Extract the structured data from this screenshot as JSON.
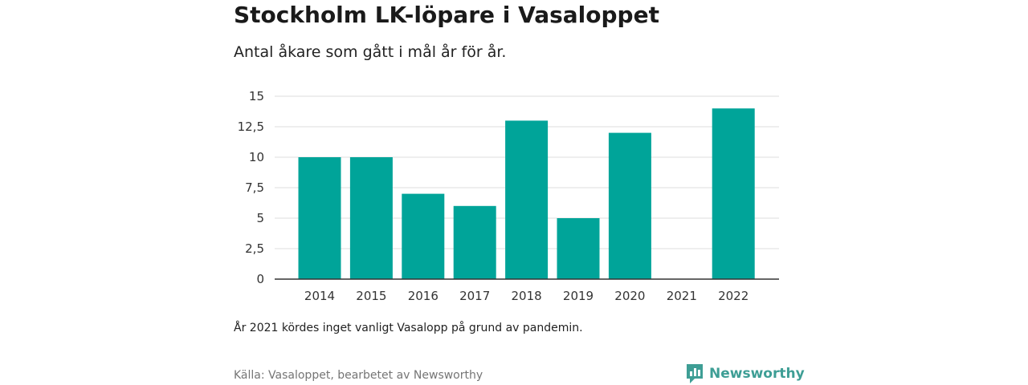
{
  "header": {
    "title": "Stockholm LK-löpare i Vasaloppet",
    "subtitle": "Antal åkare som gått i mål år för år."
  },
  "footer": {
    "note": "År 2021 kördes inget vanligt Vasalopp på grund av pandemin.",
    "source": "Källa: Vasaloppet, bearbetet av Newsworthy",
    "brand_name": "Newsworthy",
    "brand_icon": "newsworthy-logo-icon"
  },
  "colors": {
    "bar": "#00a499",
    "brand": "#3e9e95",
    "grid": "#dddddd",
    "axis": "#333333"
  },
  "chart_data": {
    "type": "bar",
    "title": "Stockholm LK-löpare i Vasaloppet",
    "subtitle": "Antal åkare som gått i mål år för år.",
    "xlabel": "",
    "ylabel": "",
    "categories": [
      "2014",
      "2015",
      "2016",
      "2017",
      "2018",
      "2019",
      "2020",
      "2021",
      "2022"
    ],
    "values": [
      10,
      10,
      7,
      6,
      13,
      5,
      12,
      0,
      14
    ],
    "ylim": [
      0,
      15
    ],
    "yticks": [
      0,
      2.5,
      5,
      7.5,
      10,
      12.5,
      15
    ],
    "ytick_labels": [
      "0",
      "2,5",
      "5",
      "7,5",
      "10",
      "12,5",
      "15"
    ],
    "grid": true,
    "legend": "none"
  }
}
